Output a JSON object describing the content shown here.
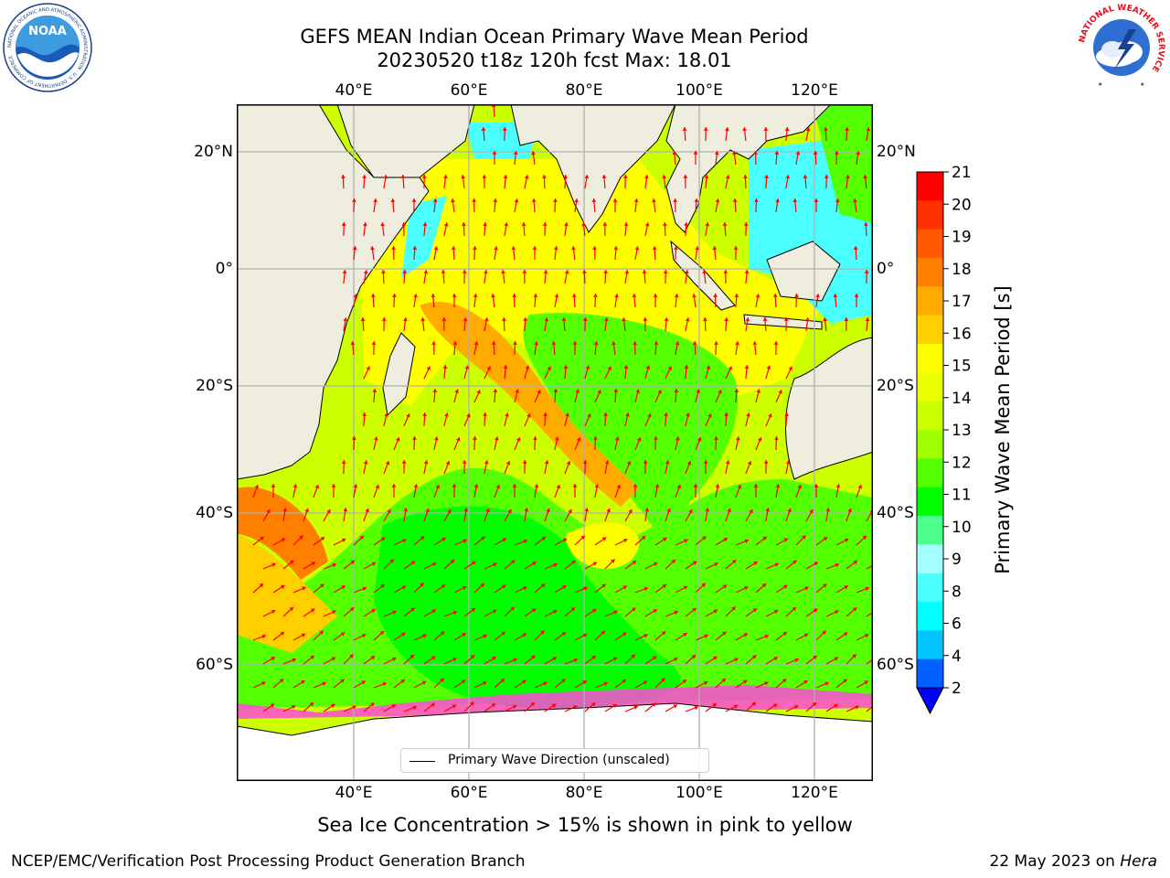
{
  "header": {
    "title_line1": "GEFS MEAN Indian Ocean Primary Wave Mean Period",
    "title_line2": "20230520 t18z 120h fcst   Max: 18.01"
  },
  "logos": {
    "noaa": {
      "name": "NOAA",
      "ring_text": "NATIONAL OCEANIC AND ATMOSPHERIC ADMINISTRATION · U.S. DEPARTMENT OF COMMERCE"
    },
    "nws": {
      "ring_text": "NATIONAL WEATHER SERVICE"
    }
  },
  "map": {
    "lon_ticks_top": [
      "40°E",
      "60°E",
      "80°E",
      "100°E",
      "120°E"
    ],
    "lon_ticks_bottom": [
      "40°E",
      "60°E",
      "80°E",
      "100°E",
      "120°E"
    ],
    "lat_ticks_left": [
      "20°N",
      "0°",
      "20°S",
      "40°S",
      "60°S"
    ],
    "lat_ticks_right": [
      "20°N",
      "0°",
      "20°S",
      "40°S",
      "60°S"
    ],
    "legend_label": "Primary Wave Direction (unscaled)",
    "colors": {
      "land": "#efedde",
      "sea_ice": "#ffffff",
      "vectors": "#ff0000",
      "grid": "#b0b0b0"
    }
  },
  "colorbar": {
    "label": "Primary Wave Mean Period [s]",
    "ticks": [
      "21",
      "20",
      "19",
      "18",
      "17",
      "16",
      "15",
      "14",
      "13",
      "12",
      "11",
      "10",
      "9",
      "8",
      "6",
      "4",
      "2"
    ],
    "colors": [
      "#ff0000",
      "#ff3000",
      "#ff5a00",
      "#ff8000",
      "#ffab00",
      "#ffcf00",
      "#ffff00",
      "#ecff00",
      "#ccff00",
      "#a0ff00",
      "#53ff00",
      "#00ff00",
      "#4dff8b",
      "#a6ffff",
      "#4bffff",
      "#00ffff",
      "#00c4ff",
      "#0060ff"
    ],
    "extend_color": "#0000ff"
  },
  "caption": "Sea Ice Concentration > 15% is shown in pink to yellow",
  "footer": {
    "left": "NCEP/EMC/Verification Post Processing Product Generation Branch",
    "right_prefix": "22 May 2023 on ",
    "right_host": "Hera"
  }
}
